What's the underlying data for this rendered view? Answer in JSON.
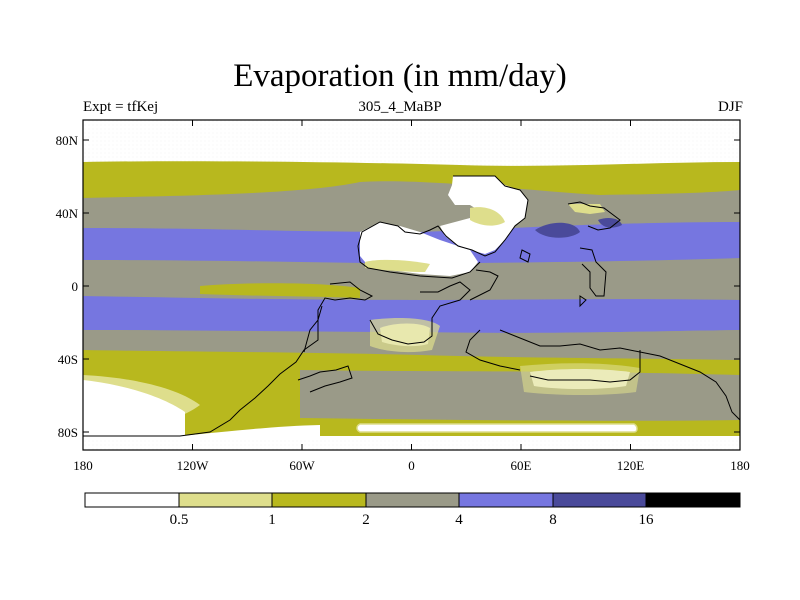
{
  "title": "Evaporation (in mm/day)",
  "left_string": "Expt = tfKej",
  "center_string": "305_4_MaBP",
  "right_string": "DJF",
  "lat_ticks": [
    "80N",
    "40N",
    "0",
    "40S",
    "80S"
  ],
  "lon_ticks": [
    "180",
    "120W",
    "60W",
    "0",
    "60E",
    "120E",
    "180"
  ],
  "colorbar": {
    "levels": [
      "0.5",
      "1",
      "2",
      "4",
      "8",
      "16"
    ],
    "colors": [
      "#ffffff",
      "#dede8c",
      "#b8b81e",
      "#9a9a88",
      "#7676e0",
      "#4a4a9a",
      "#000000"
    ]
  },
  "map": {
    "lat_range": [
      -90,
      90
    ],
    "lon_range": [
      -180,
      180
    ],
    "contour_levels": [
      0.5,
      1,
      2,
      4,
      8,
      16
    ],
    "field": "evaporation",
    "units": "mm/day",
    "season": "DJF"
  }
}
